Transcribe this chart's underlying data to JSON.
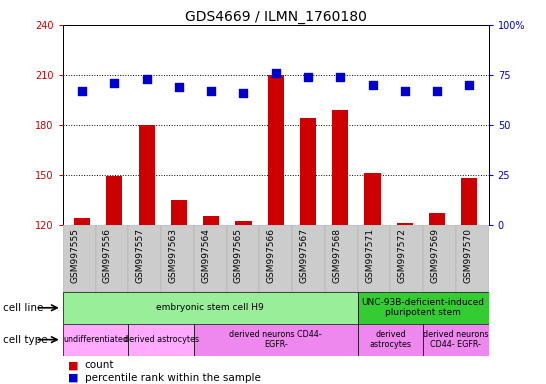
{
  "title": "GDS4669 / ILMN_1760180",
  "samples": [
    "GSM997555",
    "GSM997556",
    "GSM997557",
    "GSM997563",
    "GSM997564",
    "GSM997565",
    "GSM997566",
    "GSM997567",
    "GSM997568",
    "GSM997571",
    "GSM997572",
    "GSM997569",
    "GSM997570"
  ],
  "count_values": [
    124,
    149,
    180,
    135,
    125,
    122,
    210,
    184,
    189,
    151,
    121,
    127,
    148
  ],
  "percentile_values": [
    67,
    71,
    73,
    69,
    67,
    66,
    76,
    74,
    74,
    70,
    67,
    67,
    70
  ],
  "ylim_left": [
    120,
    240
  ],
  "ylim_right": [
    0,
    100
  ],
  "yticks_left": [
    120,
    150,
    180,
    210,
    240
  ],
  "yticks_right": [
    0,
    25,
    50,
    75,
    100
  ],
  "bar_color": "#cc0000",
  "dot_color": "#0000cc",
  "cell_line_groups": [
    {
      "label": "embryonic stem cell H9",
      "start": 0,
      "end": 9,
      "color": "#99ee99"
    },
    {
      "label": "UNC-93B-deficient-induced\npluripotent stem",
      "start": 9,
      "end": 13,
      "color": "#33cc33"
    }
  ],
  "cell_type_groups": [
    {
      "label": "undifferentiated",
      "start": 0,
      "end": 2,
      "color": "#ffaaff"
    },
    {
      "label": "derived astrocytes",
      "start": 2,
      "end": 4,
      "color": "#ffaaff"
    },
    {
      "label": "derived neurons CD44-\nEGFR-",
      "start": 4,
      "end": 9,
      "color": "#ee88ee"
    },
    {
      "label": "derived\nastrocytes",
      "start": 9,
      "end": 11,
      "color": "#ee88ee"
    },
    {
      "label": "derived neurons\nCD44- EGFR-",
      "start": 11,
      "end": 13,
      "color": "#ee88ee"
    }
  ],
  "bar_width": 0.5,
  "dot_size": 28,
  "dot_marker": "s",
  "legend_labels": [
    "count",
    "percentile rank within the sample"
  ],
  "legend_colors": [
    "#cc0000",
    "#0000cc"
  ],
  "tick_fontsize": 7,
  "title_fontsize": 10
}
